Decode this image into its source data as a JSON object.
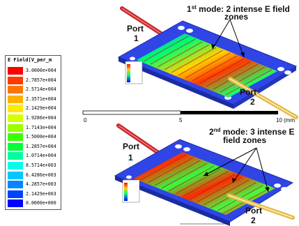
{
  "legend": {
    "title": "E Field[V_per_m",
    "entries": [
      {
        "value": "3.0000e+004",
        "color": "#ff0000"
      },
      {
        "value": "2.7857e+004",
        "color": "#ff3a00"
      },
      {
        "value": "2.5714e+004",
        "color": "#ff7500"
      },
      {
        "value": "2.3571e+004",
        "color": "#ffb000"
      },
      {
        "value": "2.1429e+004",
        "color": "#ffea00"
      },
      {
        "value": "1.9286e+004",
        "color": "#d6ff00"
      },
      {
        "value": "1.7143e+004",
        "color": "#9cff00"
      },
      {
        "value": "1.5000e+004",
        "color": "#3cff00"
      },
      {
        "value": "1.2857e+004",
        "color": "#00ff3c"
      },
      {
        "value": "1.0714e+004",
        "color": "#00ff9c"
      },
      {
        "value": "8.5714e+003",
        "color": "#00ffea"
      },
      {
        "value": "6.4286e+003",
        "color": "#00c8ff"
      },
      {
        "value": "4.2857e+003",
        "color": "#0088ff"
      },
      {
        "value": "2.1429e+003",
        "color": "#0044ff"
      },
      {
        "value": "0.0000e+000",
        "color": "#0000ff"
      }
    ]
  },
  "top_panel": {
    "mode_num": "1",
    "mode_sup": "st",
    "mode_line1": " mode: 2 intense E field",
    "mode_line2": "zones",
    "port1_a": "Port",
    "port1_b": "1",
    "port2_a": "Port",
    "port2_b": "2"
  },
  "bottom_panel": {
    "mode_num": "2",
    "mode_sup": "nd",
    "mode_line1": " mode: 3 intense E",
    "mode_line2": "field zones",
    "port1_a": "Port",
    "port1_b": "1",
    "port2_a": "Port",
    "port2_b": "2"
  },
  "scale_bar": {
    "tick0": "0",
    "tick5": "5",
    "tick10": "10 (mm"
  },
  "colors": {
    "substrate": "#2f45e6",
    "strip_gold": "#e4b84a",
    "strip_red": "#c8262a"
  }
}
